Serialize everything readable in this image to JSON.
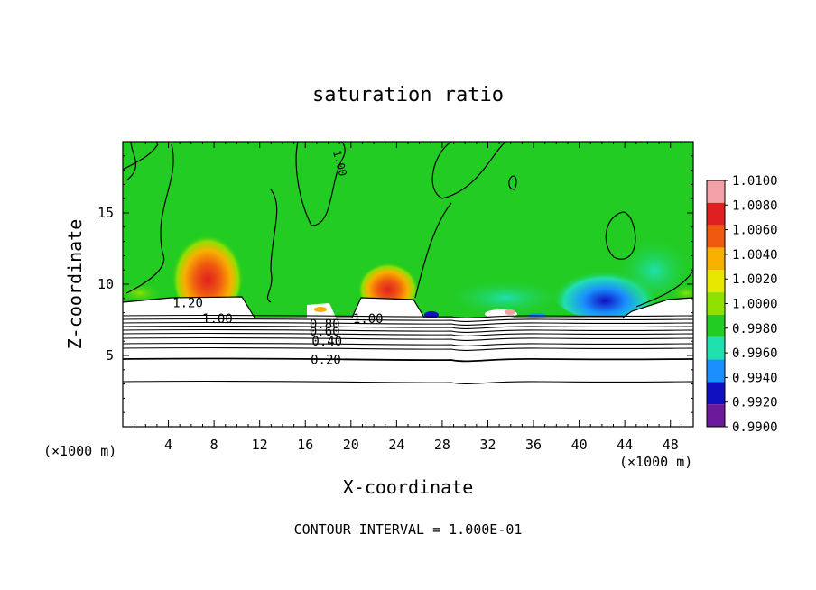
{
  "chart_data": {
    "type": "heatmap",
    "title": "saturation ratio",
    "xlabel": "X-coordinate",
    "ylabel": "Z-coordinate",
    "x_unit_label": "(×1000 m)",
    "y_unit_label": "(×1000 m)",
    "xlim": [
      0,
      50
    ],
    "ylim": [
      0,
      20
    ],
    "x_ticks": [
      4,
      8,
      12,
      16,
      20,
      24,
      28,
      32,
      36,
      40,
      44,
      48
    ],
    "y_ticks": [
      5,
      10,
      15
    ],
    "footer": "CONTOUR INTERVAL = 1.000E-01",
    "colorbar": {
      "levels": [
        "1.0100",
        "1.0080",
        "1.0060",
        "1.0040",
        "1.0020",
        "1.0000",
        "0.9980",
        "0.9960",
        "0.9940",
        "0.9920",
        "0.9900"
      ],
      "colors": [
        "#f4a0a8",
        "#e02020",
        "#f05a10",
        "#f8b000",
        "#e6e600",
        "#90e000",
        "#22cc22",
        "#20e0b0",
        "#1a90ff",
        "#1010c0",
        "#6a1a9a"
      ]
    },
    "contour_labels": [
      {
        "text": "1.20",
        "x": 5.7,
        "z": 8.7
      },
      {
        "text": "1.00",
        "x": 8.3,
        "z": 7.6
      },
      {
        "text": "1.00",
        "x": 21.5,
        "z": 7.6
      },
      {
        "text": "0.80",
        "x": 17.7,
        "z": 7.2
      },
      {
        "text": "0.60",
        "x": 17.7,
        "z": 6.7
      },
      {
        "text": "0.40",
        "x": 17.9,
        "z": 6.0
      },
      {
        "text": "0.20",
        "x": 17.8,
        "z": 4.7
      },
      {
        "text": "1.00",
        "x": 19.1,
        "z": 18.5
      }
    ],
    "grid": false,
    "legend": "right"
  }
}
